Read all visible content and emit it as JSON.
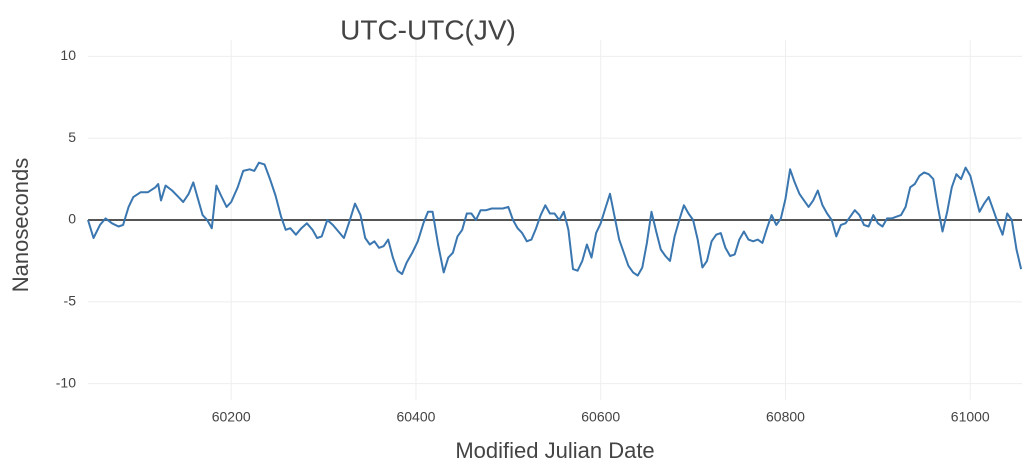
{
  "chart_data": {
    "type": "line",
    "title": "UTC-UTC(JV)",
    "x_label": "Modified Julian Date",
    "y_label": "Nanoseconds",
    "xlim": [
      60045,
      61056
    ],
    "xticks": [
      60200,
      60400,
      60600,
      60800,
      61000
    ],
    "ylim": [
      -11,
      11
    ],
    "yticks": [
      -10,
      -5,
      0,
      5,
      10
    ],
    "grid": true,
    "series": [
      {
        "color": "#3a76af",
        "x": [
          60045,
          60051,
          60058,
          60064,
          60071,
          60078,
          60083,
          60089,
          60094,
          60102,
          60110,
          60118,
          60121,
          60124,
          60129,
          60136,
          60143,
          60148,
          60154,
          60159,
          60164,
          60169,
          60174,
          60179,
          60184,
          60189,
          60195,
          60200,
          60207,
          60213,
          60220,
          60225,
          60230,
          60236,
          60242,
          60248,
          60254,
          60259,
          60264,
          60270,
          60276,
          60282,
          60288,
          60293,
          60298,
          60304,
          60310,
          60316,
          60322,
          60328,
          60334,
          60340,
          60345,
          60350,
          60355,
          60360,
          60365,
          60370,
          60375,
          60380,
          60385,
          60390,
          60396,
          60402,
          60408,
          60413,
          60418,
          60424,
          60430,
          60435,
          60440,
          60445,
          60450,
          60455,
          60460,
          60465,
          60470,
          60476,
          60482,
          60488,
          60494,
          60500,
          60505,
          60510,
          60515,
          60520,
          60525,
          60530,
          60535,
          60540,
          60545,
          60550,
          60555,
          60560,
          60565,
          60570,
          60575,
          60580,
          60585,
          60590,
          60595,
          60600,
          60605,
          60610,
          60615,
          60620,
          60625,
          60630,
          60635,
          60640,
          60645,
          60650,
          60655,
          60660,
          60665,
          60670,
          60675,
          60680,
          60685,
          60690,
          60695,
          60700,
          60705,
          60710,
          60715,
          60720,
          60725,
          60730,
          60735,
          60740,
          60745,
          60750,
          60755,
          60760,
          60765,
          60770,
          60775,
          60780,
          60785,
          60790,
          60795,
          60800,
          60805,
          60810,
          60815,
          60820,
          60825,
          60830,
          60835,
          60840,
          60845,
          60850,
          60855,
          60860,
          60865,
          60870,
          60875,
          60880,
          60885,
          60890,
          60895,
          60900,
          60905,
          60910,
          60915,
          60920,
          60925,
          60930,
          60935,
          60940,
          60945,
          60950,
          60955,
          60960,
          60965,
          60970,
          60975,
          60980,
          60985,
          60990,
          60995,
          61000,
          61005,
          61010,
          61015,
          61020,
          61025,
          61030,
          61035,
          61040,
          61045,
          61050,
          61055
        ],
        "values": [
          0.0,
          -1.1,
          -0.3,
          0.1,
          -0.2,
          -0.4,
          -0.3,
          0.8,
          1.4,
          1.7,
          1.7,
          2.0,
          2.2,
          1.2,
          2.1,
          1.8,
          1.4,
          1.1,
          1.6,
          2.3,
          1.3,
          0.3,
          0.0,
          -0.5,
          2.1,
          1.5,
          0.8,
          1.1,
          2.0,
          3.0,
          3.1,
          3.0,
          3.5,
          3.4,
          2.5,
          1.5,
          0.2,
          -0.6,
          -0.5,
          -0.9,
          -0.5,
          -0.2,
          -0.6,
          -1.1,
          -1.0,
          0.0,
          -0.3,
          -0.7,
          -1.1,
          -0.1,
          1.0,
          0.3,
          -1.1,
          -1.5,
          -1.3,
          -1.7,
          -1.6,
          -1.2,
          -2.3,
          -3.1,
          -3.3,
          -2.6,
          -2.0,
          -1.3,
          -0.2,
          0.5,
          0.5,
          -1.5,
          -3.2,
          -2.3,
          -2.0,
          -1.0,
          -0.6,
          0.4,
          0.4,
          0.0,
          0.6,
          0.6,
          0.7,
          0.7,
          0.7,
          0.8,
          0.0,
          -0.5,
          -0.8,
          -1.3,
          -1.2,
          -0.5,
          0.3,
          0.9,
          0.4,
          0.4,
          0.0,
          0.5,
          -0.6,
          -3.0,
          -3.1,
          -2.5,
          -1.5,
          -2.3,
          -0.8,
          -0.2,
          0.7,
          1.6,
          0.2,
          -1.2,
          -2.0,
          -2.8,
          -3.2,
          -3.4,
          -2.9,
          -1.4,
          0.5,
          -0.7,
          -1.8,
          -2.2,
          -2.5,
          -1.0,
          0.0,
          0.9,
          0.4,
          0.0,
          -1.2,
          -2.9,
          -2.5,
          -1.3,
          -0.9,
          -0.8,
          -1.7,
          -2.2,
          -2.1,
          -1.2,
          -0.7,
          -1.2,
          -1.3,
          -1.2,
          -1.4,
          -0.5,
          0.3,
          -0.3,
          0.1,
          1.3,
          3.1,
          2.3,
          1.6,
          1.2,
          0.8,
          1.2,
          1.8,
          0.9,
          0.4,
          0.0,
          -1.0,
          -0.3,
          -0.2,
          0.2,
          0.6,
          0.3,
          -0.3,
          -0.4,
          0.3,
          -0.2,
          -0.4,
          0.1,
          0.1,
          0.2,
          0.3,
          0.8,
          2.0,
          2.2,
          2.7,
          2.9,
          2.8,
          2.5,
          0.8,
          -0.7,
          0.5,
          2.0,
          2.8,
          2.5,
          3.2,
          2.7,
          1.6,
          0.5,
          1.0,
          1.4,
          0.6,
          -0.2,
          -0.9,
          0.4,
          0.0,
          -1.8,
          -3.0
        ]
      }
    ]
  }
}
